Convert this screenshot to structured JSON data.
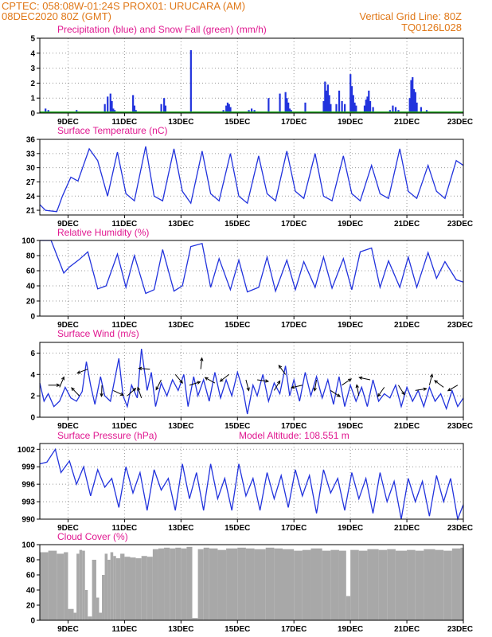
{
  "header": {
    "line1_left": "CPTEC:   058:08W-01:24S   PROX01: URUCARA (AM)",
    "line2_left": "08DEC2020 80Z (GMT)",
    "line2_right": "Vertical Grid Line: 80Z",
    "line3_right": "TQ0126L028"
  },
  "colors": {
    "header": "#e07818",
    "title": "#e01890",
    "line": "#2233dd",
    "precip": "#2233dd",
    "snow": "#22aa22",
    "cloud": "#a8a8a8",
    "grid": "#999999"
  },
  "x_axis": {
    "start_day": 8,
    "end_day": 23,
    "tick_days": [
      9,
      11,
      13,
      15,
      17,
      19,
      21,
      23
    ],
    "tick_labels": [
      "9DEC",
      "11DEC",
      "13DEC",
      "15DEC",
      "17DEC",
      "19DEC",
      "21DEC",
      "23DEC"
    ]
  },
  "chart_data": [
    {
      "id": "precip",
      "type": "bar",
      "title": "Precipitation (blue) and Snow Fall (green) (mm/h)",
      "ylim": [
        0,
        5
      ],
      "yticks": [
        0,
        1,
        2,
        3,
        4,
        5
      ],
      "grid": true,
      "series": [
        {
          "name": "Precipitation",
          "x": [
            8.2,
            8.3,
            9.3,
            9.6,
            9.7,
            10.3,
            10.4,
            10.5,
            10.55,
            10.6,
            10.65,
            10.7,
            11.3,
            11.35,
            11.4,
            12.3,
            12.4,
            12.45,
            13.3,
            13.35,
            13.4,
            14.5,
            14.6,
            14.65,
            14.7,
            14.75,
            15.4,
            15.5,
            15.6,
            15.7,
            16.1,
            16.5,
            16.7,
            16.75,
            16.8,
            16.85,
            16.9,
            17.4,
            18.05,
            18.1,
            18.15,
            18.2,
            18.25,
            18.3,
            18.5,
            18.6,
            18.7,
            18.8,
            19.0,
            19.05,
            19.1,
            19.15,
            19.2,
            19.5,
            19.55,
            19.6,
            19.65,
            19.7,
            19.8,
            20.4,
            20.5,
            20.6,
            20.7,
            21.1,
            21.15,
            21.2,
            21.25,
            21.3,
            21.35,
            21.5,
            21.7
          ],
          "values": [
            0.3,
            0.2,
            0.2,
            0.1,
            0.1,
            0.6,
            1.1,
            1.3,
            0.8,
            0.3,
            0.2,
            0.1,
            1.2,
            0.5,
            0.2,
            0.6,
            1.0,
            0.5,
            0.1,
            4.2,
            0.1,
            0.2,
            0.5,
            0.7,
            0.6,
            0.4,
            0.2,
            0.3,
            0.2,
            0.1,
            1.0,
            1.3,
            1.4,
            1.0,
            0.7,
            0.3,
            0.2,
            0.7,
            0.8,
            2.1,
            1.5,
            1.9,
            1.2,
            0.6,
            0.6,
            1.5,
            0.8,
            0.6,
            2.6,
            1.8,
            1.2,
            0.7,
            0.5,
            0.5,
            0.9,
            1.1,
            1.5,
            0.8,
            0.4,
            0.2,
            0.5,
            0.4,
            0.2,
            1.0,
            2.2,
            2.4,
            1.6,
            1.4,
            0.7,
            0.4,
            0.2
          ]
        },
        {
          "name": "Snow Fall",
          "x": [],
          "values": []
        }
      ]
    },
    {
      "id": "temperature",
      "type": "line",
      "title": "Surface Temperature (nC)",
      "ylim": [
        20,
        36
      ],
      "yticks": [
        21,
        24,
        27,
        30,
        33,
        36
      ],
      "grid": true,
      "series": [
        {
          "name": "Temperature",
          "x": [
            8.0,
            8.2,
            8.6,
            8.8,
            9.1,
            9.35,
            9.75,
            10.05,
            10.4,
            10.75,
            11.05,
            11.35,
            11.75,
            12.05,
            12.35,
            12.75,
            13.05,
            13.35,
            13.75,
            14.05,
            14.35,
            14.75,
            15.05,
            15.35,
            15.75,
            16.05,
            16.35,
            16.75,
            17.05,
            17.35,
            17.75,
            18.05,
            18.35,
            18.75,
            19.05,
            19.35,
            19.75,
            20.05,
            20.35,
            20.75,
            21.05,
            21.35,
            21.75,
            22.05,
            22.35,
            22.75,
            23.0
          ],
          "values": [
            22.2,
            21.0,
            20.7,
            24,
            28.0,
            27.2,
            34.0,
            31.5,
            24.0,
            33.3,
            24.5,
            23.0,
            34.5,
            24.0,
            23.0,
            34.0,
            25.0,
            22.5,
            33.5,
            24.5,
            23.0,
            33.0,
            24.0,
            22.5,
            32.5,
            24.5,
            23.0,
            33.5,
            25.0,
            23.5,
            33.0,
            24.0,
            23.0,
            32.5,
            24.5,
            23.0,
            30.5,
            24.5,
            23.5,
            34.0,
            25.0,
            23.5,
            30.5,
            25.0,
            23.5,
            31.5,
            30.5
          ]
        }
      ]
    },
    {
      "id": "humidity",
      "type": "line",
      "title": "Relative Humidity (%)",
      "ylim": [
        0,
        100
      ],
      "yticks": [
        0,
        20,
        40,
        60,
        80,
        100
      ],
      "grid": true,
      "series": [
        {
          "name": "Relative Humidity",
          "x": [
            8.0,
            8.4,
            8.85,
            9.05,
            9.4,
            9.7,
            10.05,
            10.35,
            10.75,
            11.05,
            11.35,
            11.75,
            12.05,
            12.35,
            12.75,
            13.05,
            13.35,
            13.75,
            14.05,
            14.35,
            14.75,
            15.05,
            15.35,
            15.75,
            16.05,
            16.35,
            16.75,
            17.05,
            17.35,
            17.75,
            18.05,
            18.35,
            18.75,
            19.05,
            19.35,
            19.75,
            20.05,
            20.35,
            20.75,
            21.05,
            21.35,
            21.75,
            22.05,
            22.35,
            22.75,
            23.0
          ],
          "values": [
            100,
            100,
            57,
            65,
            75,
            85,
            36,
            40,
            82,
            38,
            80,
            30,
            35,
            88,
            33,
            40,
            92,
            96,
            38,
            76,
            35,
            74,
            32,
            38,
            78,
            33,
            74,
            35,
            72,
            38,
            78,
            37,
            76,
            35,
            85,
            90,
            38,
            73,
            38,
            78,
            38,
            84,
            50,
            72,
            48,
            45
          ]
        }
      ]
    },
    {
      "id": "wind",
      "type": "line",
      "title": "Surface Wind (m/s)",
      "ylim": [
        0,
        7
      ],
      "yticks": [
        0,
        2,
        4,
        6
      ],
      "grid": true,
      "series": [
        {
          "name": "Wind Speed",
          "x": [
            8.0,
            8.15,
            8.3,
            8.5,
            8.7,
            8.9,
            9.1,
            9.3,
            9.5,
            9.65,
            9.8,
            9.95,
            10.15,
            10.3,
            10.5,
            10.65,
            10.8,
            10.95,
            11.1,
            11.25,
            11.45,
            11.6,
            11.8,
            11.95,
            12.1,
            12.3,
            12.5,
            12.7,
            12.9,
            13.1,
            13.25,
            13.45,
            13.6,
            13.8,
            14.0,
            14.2,
            14.4,
            14.6,
            14.8,
            15.0,
            15.2,
            15.35,
            15.55,
            15.7,
            15.9,
            16.1,
            16.3,
            16.5,
            16.7,
            16.85,
            17.0,
            17.2,
            17.4,
            17.6,
            17.8,
            18.0,
            18.2,
            18.4,
            18.6,
            18.8,
            19.0,
            19.2,
            19.4,
            19.6,
            19.8,
            20.0,
            20.2,
            20.4,
            20.6,
            20.8,
            21.0,
            21.2,
            21.4,
            21.6,
            21.8,
            22.0,
            22.2,
            22.4,
            22.6,
            22.8,
            23.0
          ],
          "values": [
            3.2,
            1.5,
            2.2,
            1.0,
            1.5,
            2.8,
            1.8,
            1.5,
            2.4,
            5.2,
            3.0,
            1.2,
            3.8,
            2.0,
            1.5,
            3.5,
            5.5,
            2.0,
            1.0,
            3.0,
            1.8,
            6.4,
            2.5,
            4.2,
            1.0,
            3.2,
            2.0,
            3.5,
            2.5,
            4.0,
            1.0,
            3.8,
            2.0,
            3.5,
            1.5,
            4.2,
            1.8,
            3.5,
            2.0,
            4.2,
            2.5,
            0.3,
            3.0,
            2.0,
            4.0,
            1.5,
            3.2,
            2.2,
            4.8,
            2.0,
            3.5,
            1.5,
            4.2,
            2.0,
            3.8,
            1.8,
            3.5,
            1.2,
            3.8,
            1.0,
            3.0,
            1.5,
            2.8,
            1.0,
            3.5,
            1.5,
            2.2,
            1.8,
            3.0,
            1.0,
            2.8,
            1.5,
            2.5,
            1.0,
            2.8,
            1.5,
            2.2,
            0.8,
            2.5,
            1.0,
            1.8
          ]
        },
        {
          "name": "Wind Vectors",
          "x": [
            8.3,
            8.7,
            9.4,
            9.7,
            10.2,
            10.6,
            11.1,
            11.6,
            11.9,
            12.3,
            12.8,
            13.3,
            13.7,
            14.2,
            14.7,
            15.3,
            15.7,
            16.3,
            16.7,
            17.3,
            17.8,
            18.3,
            18.7,
            19.3,
            19.7,
            20.2,
            20.7,
            21.3,
            21.8,
            22.3,
            22.8
          ],
          "values": [
            3.0,
            2.8,
            2.0,
            4.5,
            3.0,
            2.5,
            2.0,
            1.8,
            4.5,
            3.5,
            4.0,
            3.0,
            4.5,
            3.2,
            4.0,
            3.5,
            3.5,
            2.5,
            4.0,
            3.0,
            3.5,
            2.5,
            3.0,
            2.0,
            3.5,
            2.8,
            3.0,
            2.5,
            3.0,
            2.8,
            3.0
          ]
        }
      ]
    },
    {
      "id": "pressure",
      "type": "line",
      "title": "Surface Pressure (hPa)",
      "annotation": "Model Altitude: 108.551 m",
      "ylim": [
        990,
        1003
      ],
      "yticks": [
        990,
        993,
        996,
        999,
        1002
      ],
      "grid": true,
      "series": [
        {
          "name": "Pressure",
          "x": [
            8.0,
            8.25,
            8.55,
            8.75,
            9.05,
            9.3,
            9.55,
            9.8,
            10.05,
            10.3,
            10.55,
            10.8,
            11.05,
            11.3,
            11.55,
            11.8,
            12.05,
            12.3,
            12.55,
            12.8,
            13.05,
            13.3,
            13.55,
            13.8,
            14.05,
            14.3,
            14.55,
            14.8,
            15.05,
            15.3,
            15.55,
            15.8,
            16.05,
            16.3,
            16.55,
            16.8,
            17.05,
            17.3,
            17.55,
            17.8,
            18.05,
            18.3,
            18.55,
            18.8,
            19.05,
            19.3,
            19.55,
            19.8,
            20.05,
            20.3,
            20.55,
            20.8,
            21.05,
            21.3,
            21.55,
            21.8,
            22.05,
            22.3,
            22.55,
            22.8,
            23.0
          ],
          "values": [
            999.5,
            999.8,
            1002.0,
            998.0,
            1000.0,
            996.0,
            999.0,
            994.0,
            998.5,
            995.5,
            997.0,
            992.0,
            999.0,
            994.5,
            998.0,
            991.5,
            998.5,
            995.0,
            997.0,
            991.5,
            999.5,
            993.5,
            998.0,
            991.5,
            999.5,
            993.5,
            997.0,
            991.5,
            999.5,
            994.0,
            997.0,
            991.5,
            998.0,
            993.5,
            997.5,
            992.0,
            998.5,
            994.0,
            997.5,
            991.0,
            998.5,
            994.5,
            997.0,
            991.5,
            998.0,
            993.5,
            997.0,
            991.0,
            998.0,
            993.0,
            996.5,
            990.0,
            997.0,
            993.0,
            996.5,
            990.5,
            997.5,
            993.0,
            997.0,
            990.0,
            992.5
          ]
        }
      ]
    },
    {
      "id": "cloud",
      "type": "bar",
      "title": "Cloud Cover (%)",
      "ylim": [
        0,
        100
      ],
      "yticks": [
        0,
        20,
        40,
        60,
        80,
        100
      ],
      "grid": false,
      "series": [
        {
          "name": "Cloud Cover",
          "x": [
            8.0,
            8.3,
            8.6,
            8.85,
            9.0,
            9.2,
            9.3,
            9.4,
            9.5,
            9.6,
            9.7,
            9.85,
            10.0,
            10.1,
            10.2,
            10.3,
            10.4,
            10.5,
            10.6,
            10.7,
            10.85,
            11.0,
            11.2,
            11.4,
            11.6,
            11.8,
            12.0,
            12.2,
            12.4,
            12.6,
            12.8,
            13.0,
            13.2,
            13.4,
            13.6,
            13.8,
            14.0,
            14.3,
            14.6,
            15.0,
            15.3,
            15.6,
            16.0,
            16.3,
            16.6,
            17.0,
            17.3,
            17.6,
            18.0,
            18.3,
            18.6,
            18.85,
            19.0,
            19.3,
            19.6,
            20.0,
            20.3,
            20.6,
            21.0,
            21.3,
            21.6,
            22.0,
            22.3,
            22.6,
            22.9
          ],
          "values": [
            90,
            92,
            88,
            90,
            15,
            10,
            88,
            93,
            92,
            40,
            5,
            80,
            30,
            10,
            60,
            88,
            80,
            90,
            85,
            82,
            88,
            84,
            83,
            82,
            85,
            84,
            94,
            95,
            96,
            95,
            96,
            95,
            97,
            3,
            94,
            96,
            95,
            93,
            95,
            96,
            95,
            94,
            96,
            95,
            94,
            92,
            93,
            95,
            92,
            93,
            92,
            32,
            93,
            92,
            94,
            93,
            94,
            92,
            93,
            92,
            94,
            93,
            92,
            95,
            96
          ]
        }
      ]
    }
  ]
}
